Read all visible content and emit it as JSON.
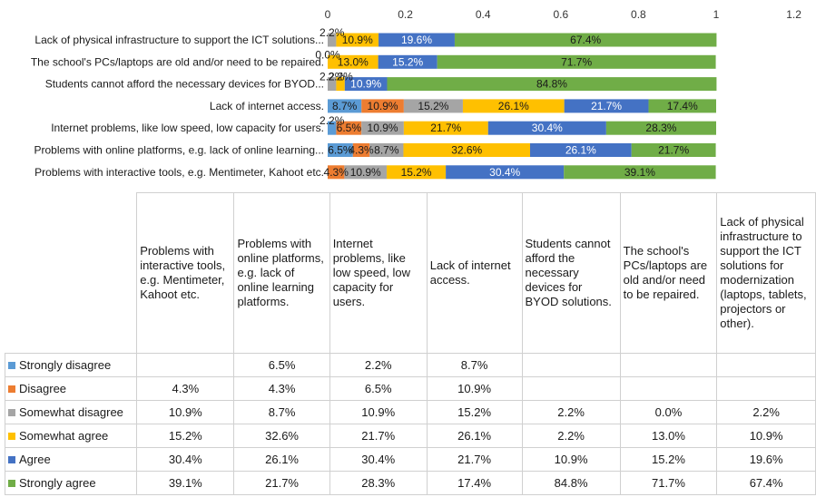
{
  "chart_data": {
    "type": "bar",
    "orientation": "horizontal-stacked",
    "xlim": [
      0,
      1.2
    ],
    "x_ticks": [
      "0",
      "0.2",
      "0.4",
      "0.6",
      "0.8",
      "1",
      "1.2"
    ],
    "categories": [
      "Problems with interactive tools, e.g. Mentimeter, Kahoot etc.",
      "Problems with online platforms, e.g. lack of online learning...",
      "Internet problems, like low speed, low capacity for users.",
      "Lack of internet access.",
      "Students cannot afford the necessary devices for BYOD...",
      "The school's PCs/laptops are old and/or need to be repaired.",
      "Lack of physical infrastructure to support the ICT solutions..."
    ],
    "series": [
      {
        "name": "Strongly disagree",
        "color": "#5b9bd5",
        "values": [
          null,
          0.065,
          0.022,
          0.087,
          null,
          null,
          null
        ],
        "labels": [
          "",
          "6.5%",
          "2.2%",
          "8.7%",
          "",
          "",
          ""
        ]
      },
      {
        "name": "Disagree",
        "color": "#ed7d31",
        "values": [
          0.043,
          0.043,
          0.065,
          0.109,
          null,
          null,
          null
        ],
        "labels": [
          "4.3%",
          "4.3%",
          "6.5%",
          "10.9%",
          "",
          "",
          ""
        ]
      },
      {
        "name": "Somewhat disagree",
        "color": "#a5a5a5",
        "values": [
          0.109,
          0.087,
          0.109,
          0.152,
          0.022,
          0.0,
          0.022
        ],
        "labels": [
          "10.9%",
          "8.7%",
          "10.9%",
          "15.2%",
          "2.2%",
          "0.0%",
          "2.2%"
        ]
      },
      {
        "name": "Somewhat agree",
        "color": "#ffc000",
        "values": [
          0.152,
          0.326,
          0.217,
          0.261,
          0.022,
          0.13,
          0.109
        ],
        "labels": [
          "15.2%",
          "32.6%",
          "21.7%",
          "26.1%",
          "2.2%",
          "13.0%",
          "10.9%"
        ]
      },
      {
        "name": "Agree",
        "color": "#4472c4",
        "values": [
          0.304,
          0.261,
          0.304,
          0.217,
          0.109,
          0.152,
          0.196
        ],
        "labels": [
          "30.4%",
          "26.1%",
          "30.4%",
          "21.7%",
          "10.9%",
          "15.2%",
          "19.6%"
        ]
      },
      {
        "name": "Strongly agree",
        "color": "#70ad47",
        "values": [
          0.391,
          0.217,
          0.283,
          0.174,
          0.848,
          0.717,
          0.674
        ],
        "labels": [
          "39.1%",
          "21.7%",
          "28.3%",
          "17.4%",
          "84.8%",
          "71.7%",
          "67.4%"
        ]
      }
    ],
    "table": {
      "columns": [
        "Problems with interactive tools, e.g. Mentimeter, Kahoot etc.",
        "Problems with online platforms, e.g. lack of online learning platforms.",
        "Internet problems, like low speed, low capacity for users.",
        "Lack of internet access.",
        "Students cannot afford the necessary devices for BYOD solutions.",
        "The school's PCs/laptops are old and/or need to be repaired.",
        "Lack of physical infrastructure to support the ICT solutions for modernization (laptops, tablets, projectors or other)."
      ]
    },
    "grid": false,
    "legend": "in-table"
  }
}
